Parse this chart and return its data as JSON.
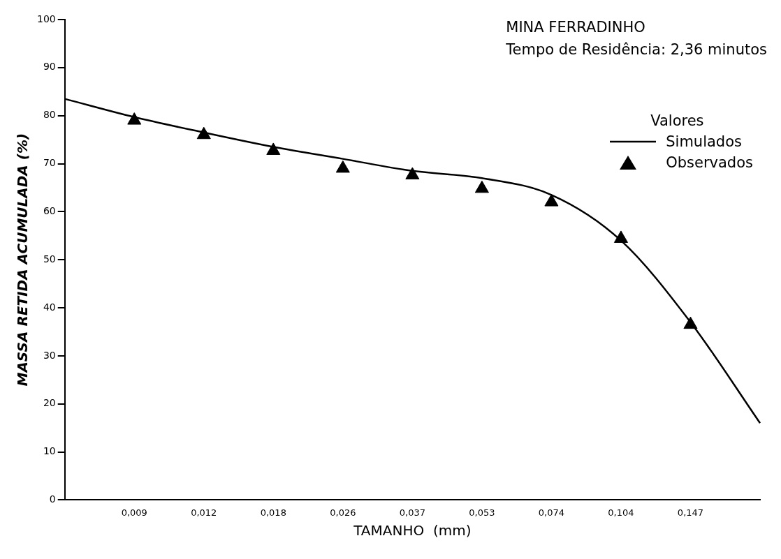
{
  "chart_data": {
    "type": "line",
    "title": "MINA FERRADINHO",
    "subtitle": "Tempo de Residência: 2,36 minutos",
    "xlabel": "TAMANHO  (mm)",
    "ylabel": "MASSA RETIDA ACUMULADA (%)",
    "legend_title": "Valores",
    "categories": [
      null,
      "0,009",
      "0,012",
      "0,018",
      "0,026",
      "0,037",
      "0,053",
      "0,074",
      "0,104",
      "0,147",
      null
    ],
    "series": [
      {
        "name": "Simulados",
        "type": "line",
        "marker": "none",
        "color": "#000000",
        "values": [
          83.5,
          79.7,
          76.5,
          73.5,
          71,
          68.5,
          67,
          63.5,
          54,
          37,
          16
        ]
      },
      {
        "name": "Observados",
        "type": "scatter",
        "marker": "triangle",
        "color": "#000000",
        "values": [
          null,
          79,
          76,
          72.7,
          69,
          67.6,
          64.8,
          62,
          54.4,
          36.5,
          null
        ]
      }
    ],
    "ylim": [
      0,
      100
    ],
    "yticks": [
      0,
      10,
      20,
      30,
      40,
      50,
      60,
      70,
      80,
      90,
      100
    ],
    "grid": false,
    "legend": "top right"
  }
}
